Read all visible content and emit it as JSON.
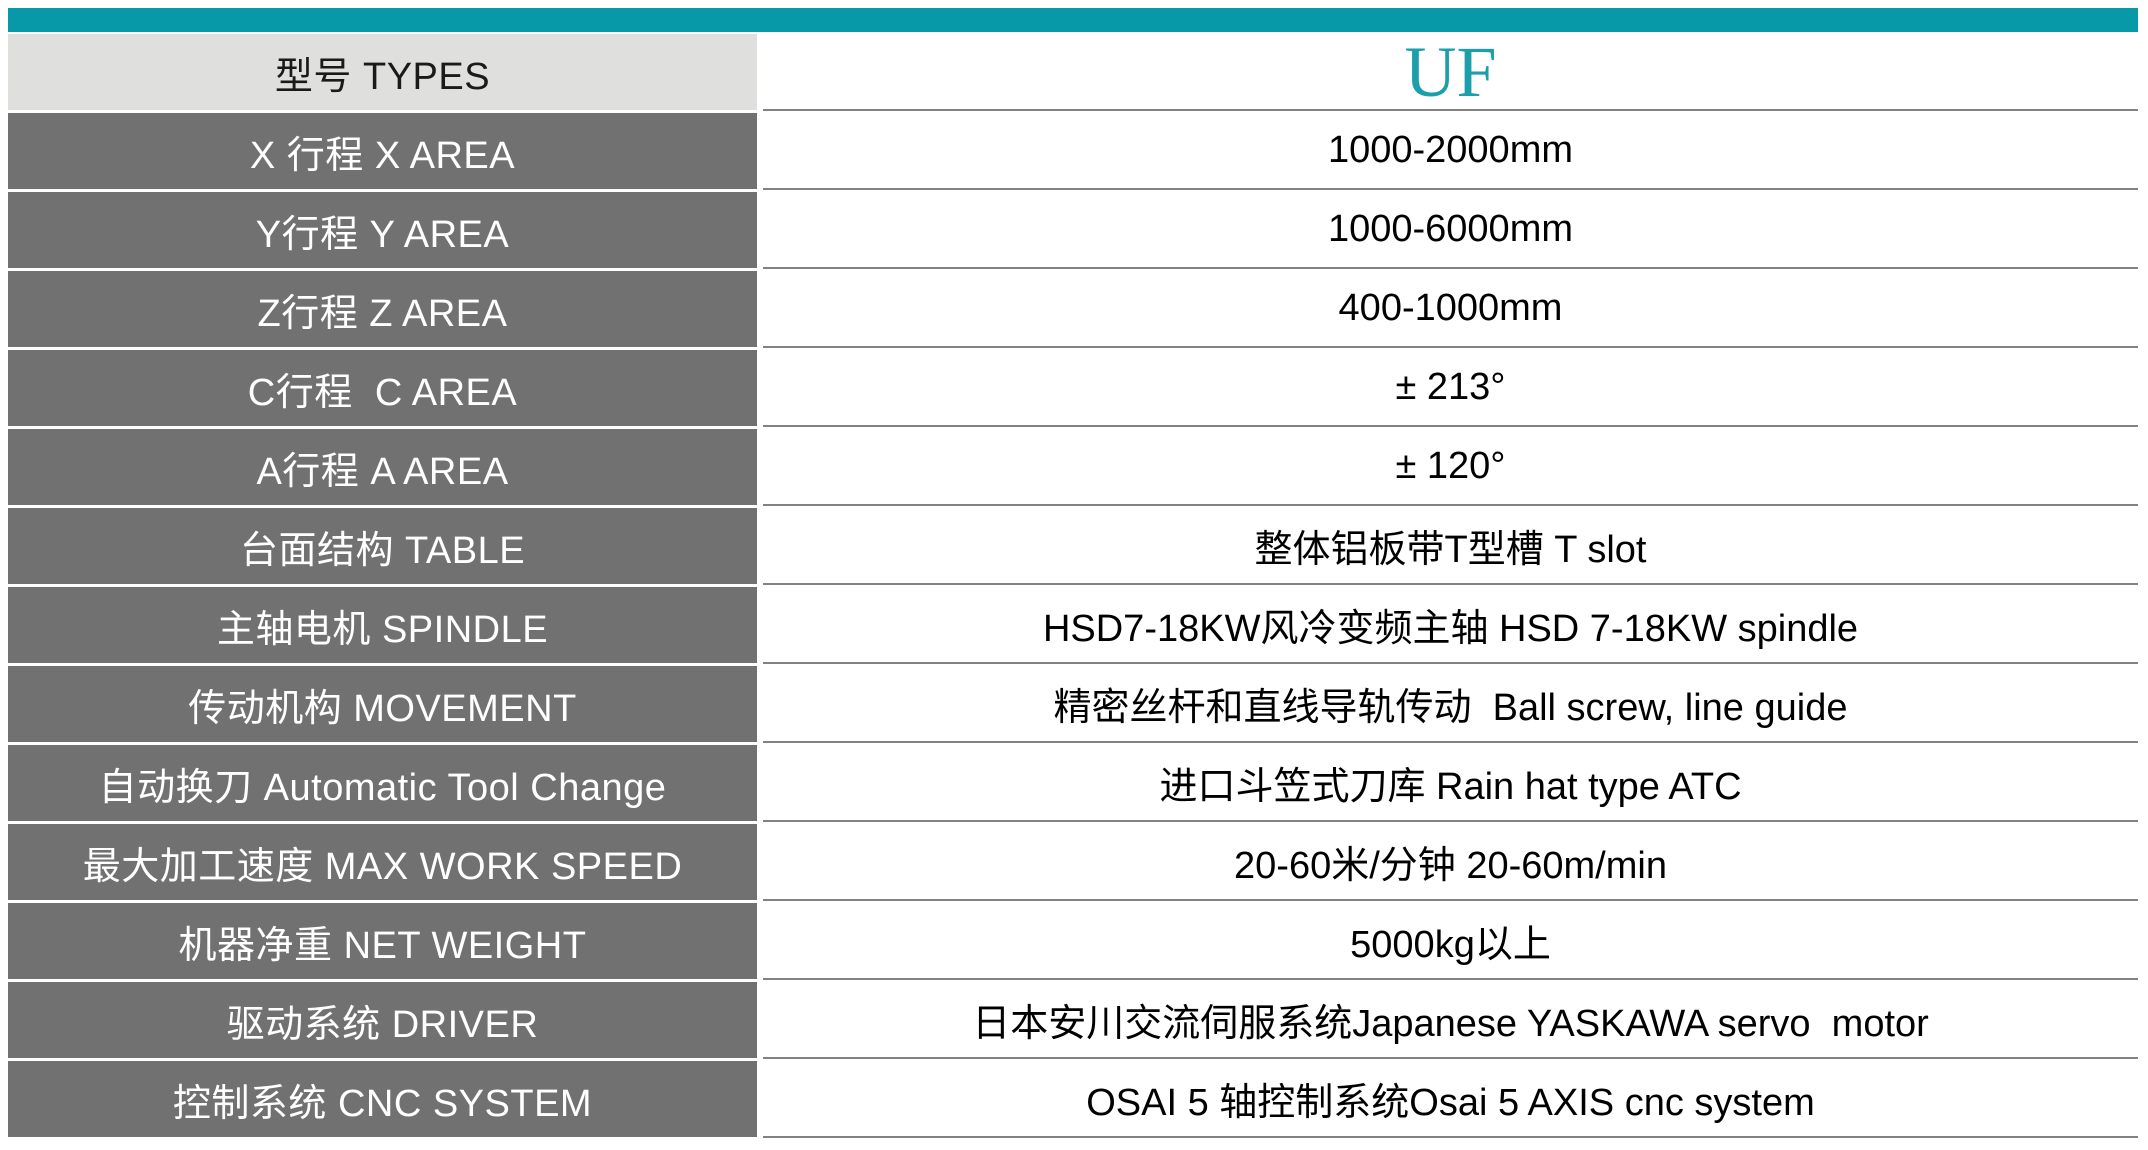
{
  "colors": {
    "accent": "#0899a8",
    "uf": "#1d9fab",
    "row-gray": "#717171",
    "header-gray": "#dfdfde",
    "divider": "#828282"
  },
  "table": {
    "header": {
      "label": "型号 TYPES",
      "value": "UF"
    },
    "rows": [
      {
        "label": "X 行程 X AREA",
        "value": "1000-2000mm"
      },
      {
        "label": "Y行程 Y AREA",
        "value": "1000-6000mm"
      },
      {
        "label": "Z行程 Z AREA",
        "value": "400-1000mm"
      },
      {
        "label": "C行程  C AREA",
        "value": "± 213°"
      },
      {
        "label": "A行程 A AREA",
        "value": "± 120°"
      },
      {
        "label": "台面结构 TABLE",
        "value": "整体铝板带T型槽 T slot"
      },
      {
        "label": "主轴电机 SPINDLE",
        "value": "HSD7-18KW风冷变频主轴 HSD 7-18KW spindle"
      },
      {
        "label": "传动机构 MOVEMENT",
        "value": "精密丝杆和直线导轨传动  Ball screw, line guide"
      },
      {
        "label": "自动换刀 Automatic Tool Change",
        "value": "进口斗笠式刀库 Rain hat type ATC"
      },
      {
        "label": "最大加工速度 MAX WORK SPEED",
        "value": "20-60米/分钟 20-60m/min"
      },
      {
        "label": "机器净重 NET WEIGHT",
        "value": "5000kg以上"
      },
      {
        "label": "驱动系统 DRIVER",
        "value": "日本安川交流伺服系统Japanese YASKAWA servo  motor"
      },
      {
        "label": "控制系统 CNC SYSTEM",
        "value": "OSAI 5 轴控制系统Osai 5 AXIS cnc system"
      }
    ]
  }
}
